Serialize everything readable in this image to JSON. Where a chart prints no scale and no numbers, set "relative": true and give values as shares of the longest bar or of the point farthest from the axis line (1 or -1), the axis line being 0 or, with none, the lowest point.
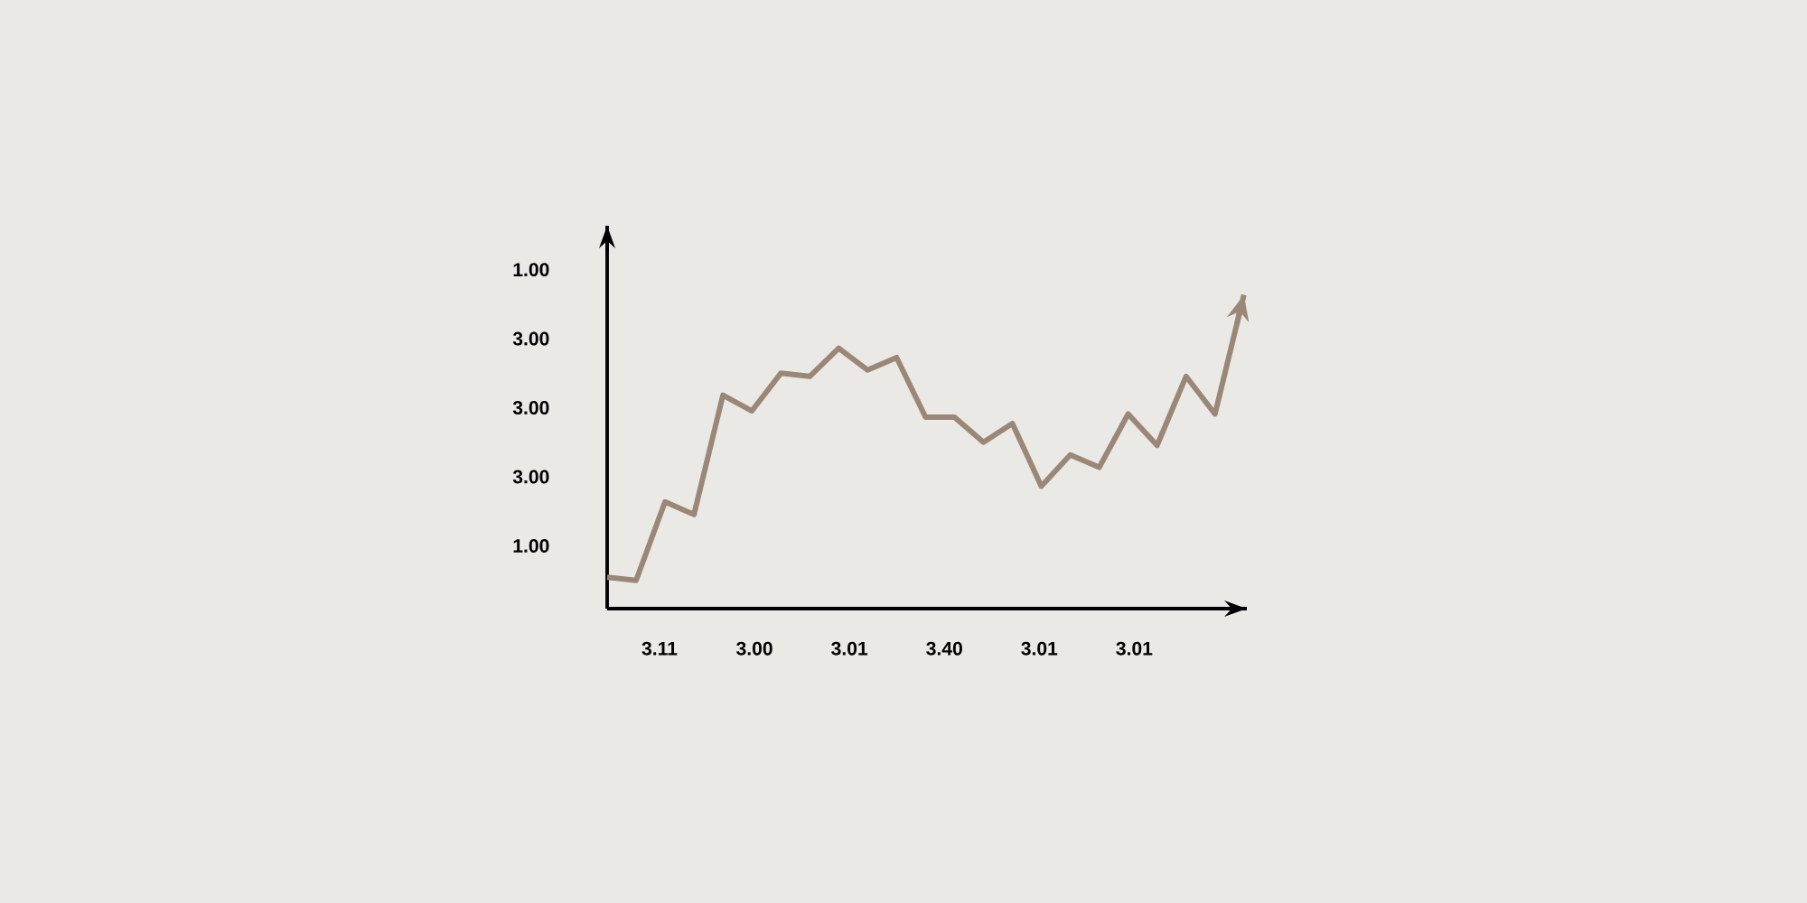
{
  "chart_data": {
    "type": "line",
    "relative": true,
    "categories": [
      null,
      null,
      null,
      null,
      null,
      null,
      null,
      null,
      null,
      null,
      null,
      null,
      null,
      null,
      null,
      null,
      null,
      null,
      null,
      null,
      null,
      null,
      null
    ],
    "values": [
      0.1,
      0.09,
      0.34,
      0.3,
      0.68,
      0.63,
      0.75,
      0.74,
      0.83,
      0.76,
      0.8,
      0.61,
      0.61,
      0.53,
      0.59,
      0.39,
      0.49,
      0.45,
      0.62,
      0.52,
      0.74,
      0.62,
      1
    ],
    "color": "#9b8777",
    "annotations": [
      "1.00",
      "3.00",
      "3.00",
      "3.00",
      "1.00",
      "3.11",
      "3.00",
      "3.01",
      "3.40",
      "3.01",
      "3.01"
    ],
    "marker": "none",
    "line_style": "solid"
  }
}
